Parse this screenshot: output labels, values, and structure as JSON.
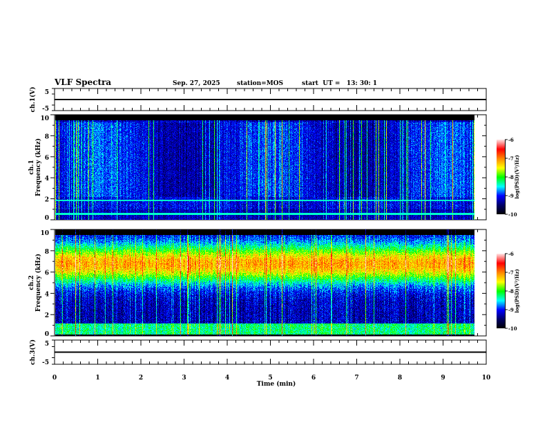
{
  "header": {
    "title": "VLF Spectra",
    "date": "Sep. 27, 2025",
    "station": "station=MOS",
    "start": "start  UT =   13: 30: 1"
  },
  "chart_data": [
    {
      "type": "line",
      "name": "ch1-voltage",
      "ylabel": "ch.1(V)",
      "ylim": [
        -5,
        5
      ],
      "yticks": [
        "5",
        "-5"
      ],
      "value_level": 0
    },
    {
      "type": "heatmap",
      "name": "ch1-spectrogram",
      "ylabel": "ch.1\nFrequency (kHz)",
      "ylabel_ch": "ch.1",
      "ylabel_freq": "Frequency (kHz)",
      "ylim": [
        0,
        10
      ],
      "yticks": [
        "0",
        "2",
        "4",
        "6",
        "8",
        "10"
      ],
      "data_extent_min": 9.83,
      "colorbar": {
        "label": "log(PSD)(V²/Hz)",
        "range": [
          -10,
          -6
        ],
        "ticks": [
          "-6",
          "-7",
          "-8",
          "-9",
          "-10"
        ]
      },
      "features": {
        "background_log_psd": -9.3,
        "lines_khz": [
          0.5,
          0.7,
          1.8,
          2.0
        ]
      }
    },
    {
      "type": "heatmap",
      "name": "ch2-spectrogram",
      "ylabel_ch": "ch.2",
      "ylabel_freq": "Frequency (kHz)",
      "ylim": [
        0,
        10
      ],
      "yticks": [
        "0",
        "2",
        "4",
        "6",
        "8",
        "10"
      ],
      "data_extent_min": 9.83,
      "colorbar": {
        "label": "log(PSD)(V²/Hz)",
        "range": [
          -10,
          -6
        ],
        "ticks": [
          "-6",
          "-7",
          "-8",
          "-9",
          "-10"
        ]
      },
      "features": {
        "band_khz": [
          5,
          9
        ],
        "band_log_psd": -7.7,
        "low_band_khz": [
          0,
          1.2
        ]
      }
    },
    {
      "type": "line",
      "name": "ch3-voltage",
      "ylabel": "ch.3(V)",
      "ylim": [
        -5,
        5
      ],
      "yticks": [
        "5",
        "-5"
      ],
      "value_level": 0
    },
    {
      "xlabel": "Time (min)",
      "xlim": [
        0,
        10
      ],
      "xticks": [
        "0",
        "1",
        "2",
        "3",
        "4",
        "5",
        "6",
        "7",
        "8",
        "9",
        "10"
      ]
    }
  ],
  "colors": {
    "trace": "#000000",
    "cmap": [
      "#000000",
      "#000066",
      "#0000ff",
      "#00ffff",
      "#00ff00",
      "#ffff00",
      "#ff8800",
      "#ff0000",
      "#ffdddd"
    ]
  }
}
